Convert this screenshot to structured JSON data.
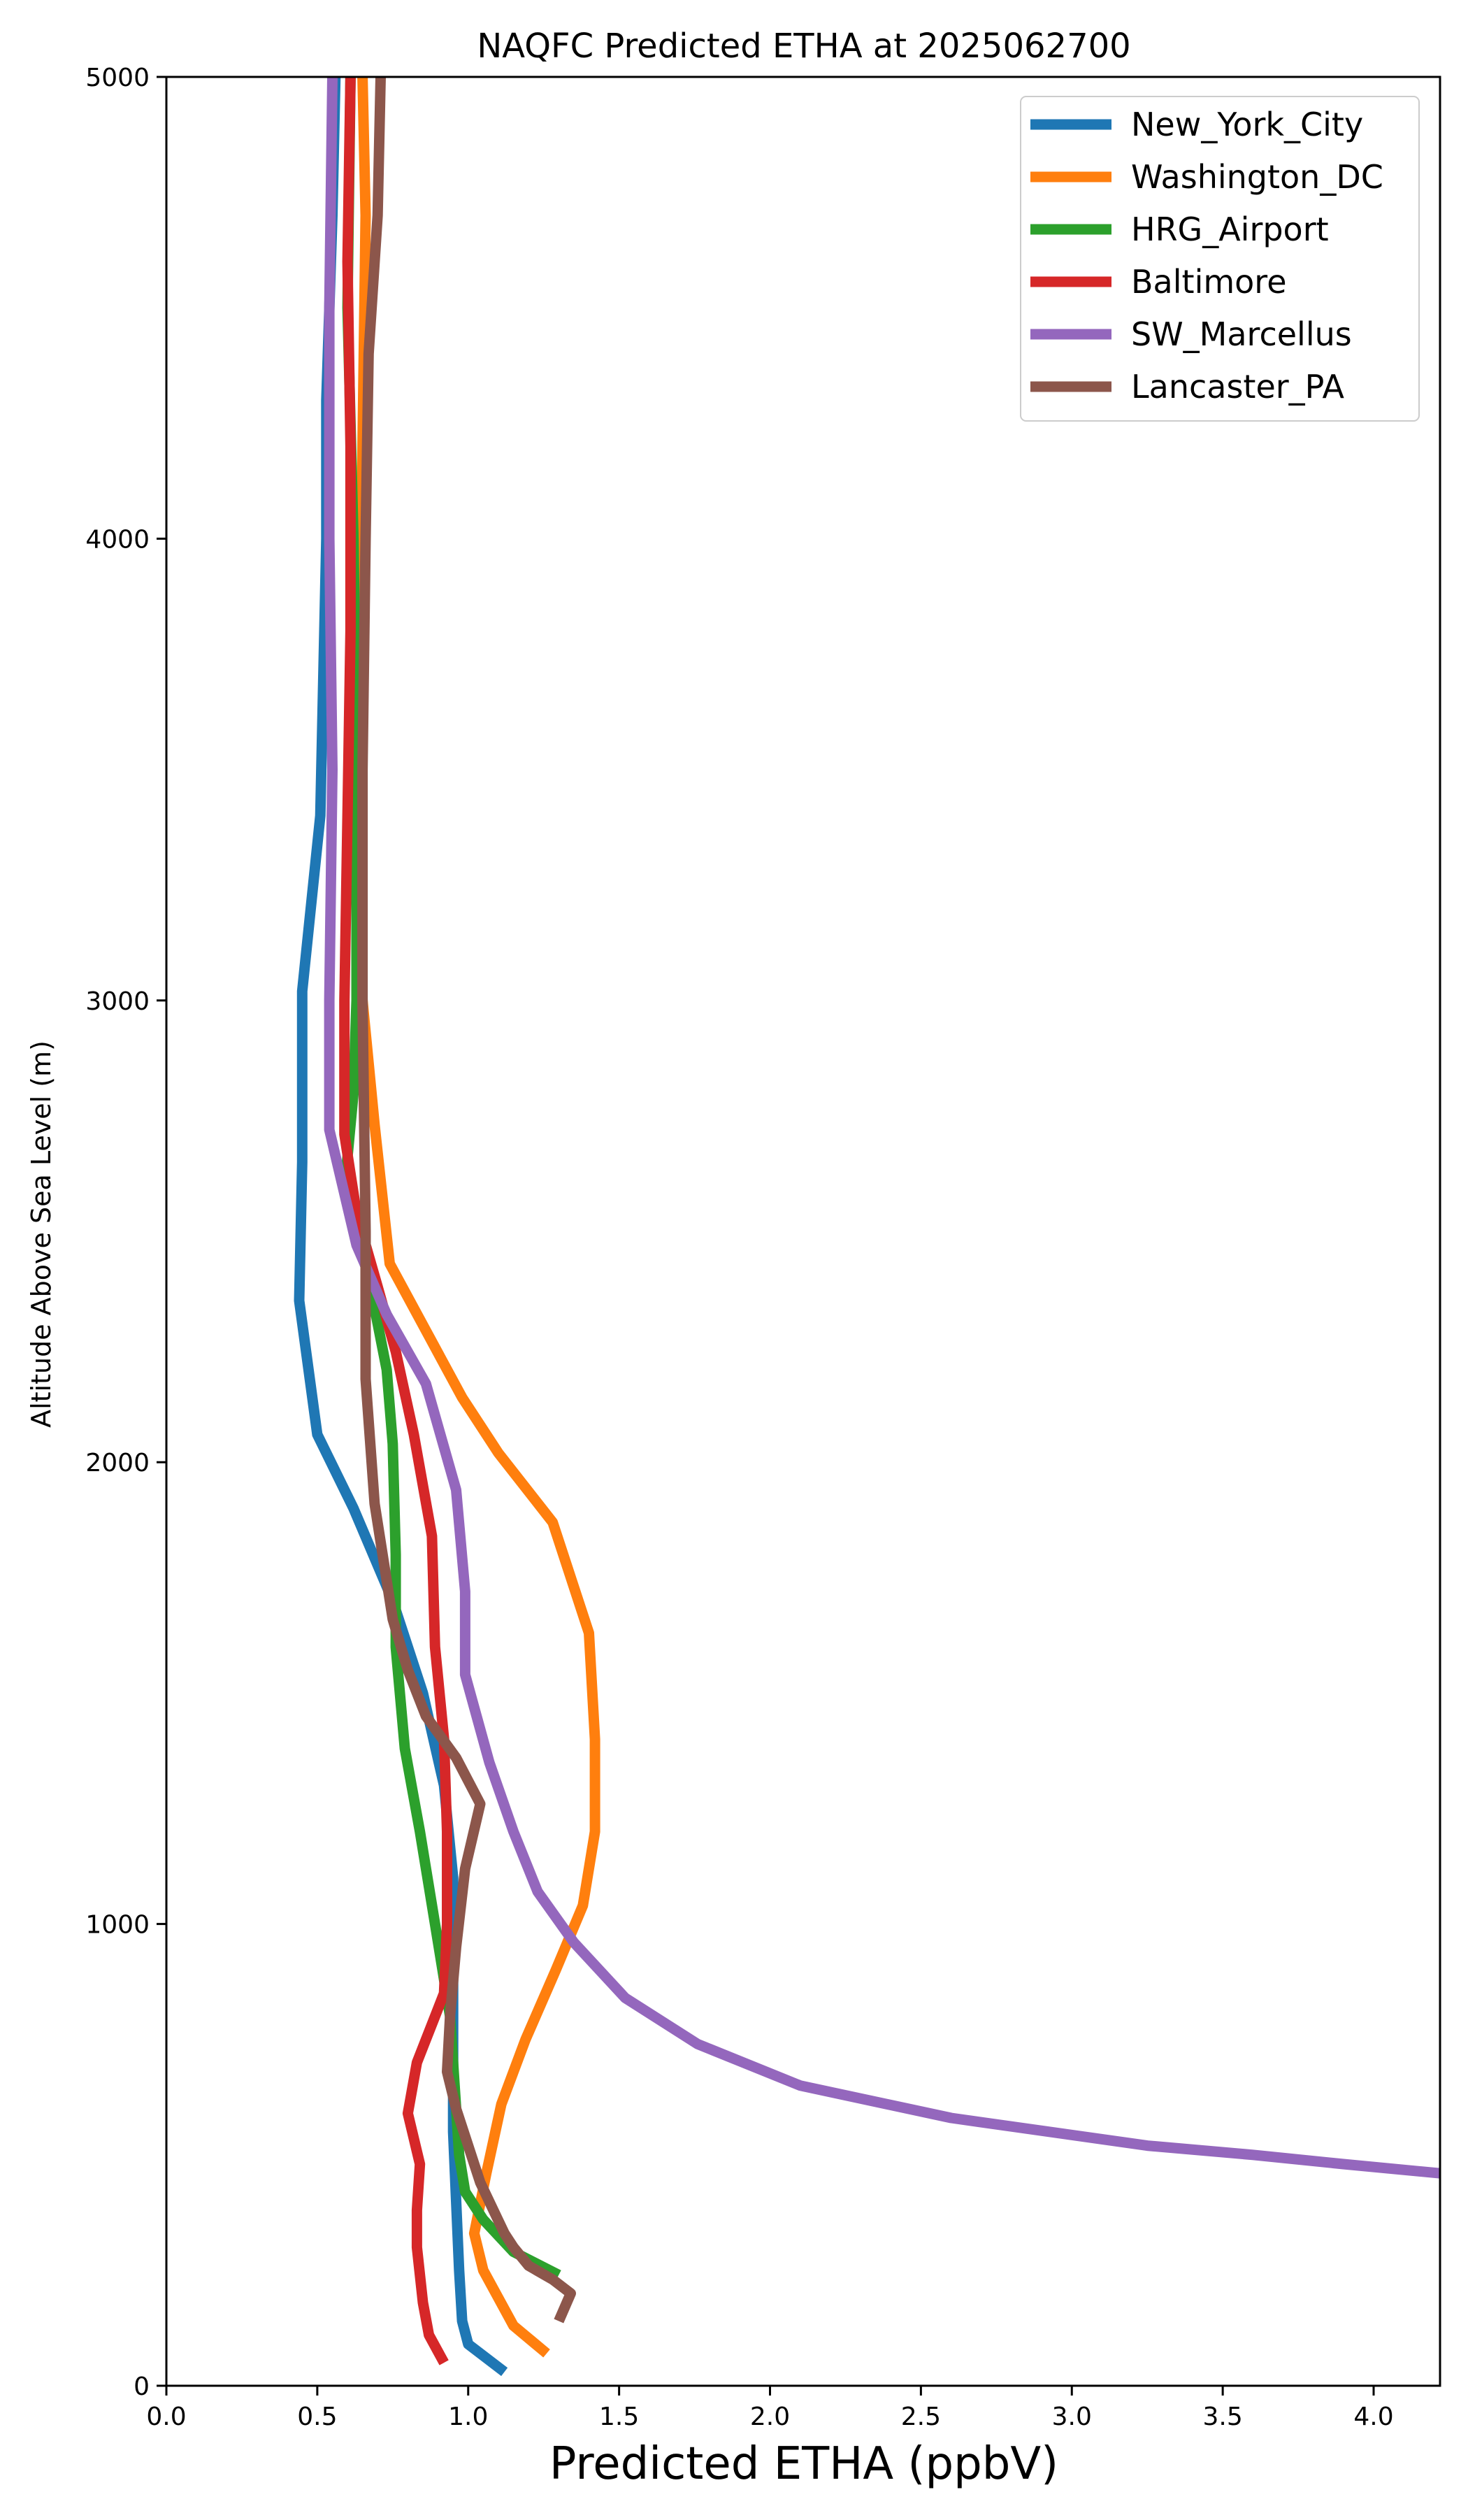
{
  "chart_data": {
    "type": "line",
    "title": "NAQFC Predicted ETHA at 2025062700",
    "xlabel": "Predicted ETHA (ppbV)",
    "ylabel": "Altitude Above Sea Level (m)",
    "xlim": [
      0,
      4.22
    ],
    "ylim": [
      0,
      5000
    ],
    "xticks": [
      0.0,
      0.5,
      1.0,
      1.5,
      2.0,
      2.5,
      3.0,
      3.5,
      4.0
    ],
    "xtick_labels": [
      "0.0",
      "0.5",
      "1.0",
      "1.5",
      "2.0",
      "2.5",
      "3.0",
      "3.5",
      "4.0"
    ],
    "yticks": [
      0,
      1000,
      2000,
      3000,
      4000,
      5000
    ],
    "ytick_labels": [
      "0",
      "1000",
      "2000",
      "3000",
      "4000",
      "5000"
    ],
    "grid": false,
    "legend_position": "top-right",
    "series": [
      {
        "name": "New_York_City",
        "color": "#1f77b4",
        "points": [
          [
            1.12,
            30
          ],
          [
            1.0,
            90
          ],
          [
            0.98,
            140
          ],
          [
            0.97,
            250
          ],
          [
            0.96,
            400
          ],
          [
            0.95,
            550
          ],
          [
            0.95,
            800
          ],
          [
            0.95,
            1100
          ],
          [
            0.92,
            1300
          ],
          [
            0.85,
            1500
          ],
          [
            0.75,
            1700
          ],
          [
            0.62,
            1900
          ],
          [
            0.5,
            2060
          ],
          [
            0.44,
            2350
          ],
          [
            0.45,
            2650
          ],
          [
            0.45,
            3020
          ],
          [
            0.51,
            3400
          ],
          [
            0.53,
            4000
          ],
          [
            0.53,
            4300
          ],
          [
            0.55,
            4700
          ],
          [
            0.56,
            5000
          ]
        ]
      },
      {
        "name": "Washington_DC",
        "color": "#ff7f0e",
        "points": [
          [
            1.26,
            70
          ],
          [
            1.15,
            130
          ],
          [
            1.05,
            250
          ],
          [
            1.02,
            330
          ],
          [
            1.06,
            460
          ],
          [
            1.11,
            610
          ],
          [
            1.19,
            750
          ],
          [
            1.29,
            900
          ],
          [
            1.38,
            1040
          ],
          [
            1.42,
            1200
          ],
          [
            1.42,
            1400
          ],
          [
            1.4,
            1630
          ],
          [
            1.28,
            1870
          ],
          [
            1.1,
            2020
          ],
          [
            0.98,
            2140
          ],
          [
            0.74,
            2430
          ],
          [
            0.69,
            2730
          ],
          [
            0.65,
            3000
          ],
          [
            0.63,
            3300
          ],
          [
            0.64,
            3700
          ],
          [
            0.65,
            4200
          ],
          [
            0.66,
            4700
          ],
          [
            0.65,
            5000
          ]
        ]
      },
      {
        "name": "HRG_Airport",
        "color": "#2ca02c",
        "points": [
          [
            1.3,
            240
          ],
          [
            1.15,
            290
          ],
          [
            1.05,
            360
          ],
          [
            0.99,
            420
          ],
          [
            0.97,
            500
          ],
          [
            0.96,
            600
          ],
          [
            0.94,
            800
          ],
          [
            0.89,
            1000
          ],
          [
            0.84,
            1200
          ],
          [
            0.79,
            1380
          ],
          [
            0.76,
            1600
          ],
          [
            0.76,
            1800
          ],
          [
            0.75,
            2040
          ],
          [
            0.73,
            2200
          ],
          [
            0.67,
            2400
          ],
          [
            0.59,
            2590
          ],
          [
            0.62,
            2800
          ],
          [
            0.63,
            3000
          ],
          [
            0.63,
            3500
          ],
          [
            0.62,
            4000
          ],
          [
            0.6,
            4500
          ],
          [
            0.61,
            5000
          ]
        ]
      },
      {
        "name": "Baltimore",
        "color": "#d62728",
        "points": [
          [
            0.92,
            50
          ],
          [
            0.87,
            110
          ],
          [
            0.85,
            180
          ],
          [
            0.83,
            300
          ],
          [
            0.83,
            380
          ],
          [
            0.84,
            480
          ],
          [
            0.8,
            590
          ],
          [
            0.83,
            700
          ],
          [
            0.89,
            800
          ],
          [
            0.92,
            850
          ],
          [
            0.93,
            1000
          ],
          [
            0.93,
            1200
          ],
          [
            0.92,
            1400
          ],
          [
            0.89,
            1600
          ],
          [
            0.88,
            1840
          ],
          [
            0.82,
            2060
          ],
          [
            0.76,
            2240
          ],
          [
            0.7,
            2380
          ],
          [
            0.63,
            2540
          ],
          [
            0.59,
            2710
          ],
          [
            0.59,
            3000
          ],
          [
            0.6,
            3400
          ],
          [
            0.61,
            3800
          ],
          [
            0.61,
            4200
          ],
          [
            0.6,
            4600
          ],
          [
            0.61,
            5000
          ]
        ]
      },
      {
        "name": "SW_Marcellus",
        "color": "#9467bd",
        "points": [
          [
            4.22,
            460
          ],
          [
            3.9,
            480
          ],
          [
            3.6,
            500
          ],
          [
            3.25,
            520
          ],
          [
            2.6,
            580
          ],
          [
            2.1,
            650
          ],
          [
            1.76,
            740
          ],
          [
            1.52,
            840
          ],
          [
            1.35,
            960
          ],
          [
            1.23,
            1070
          ],
          [
            1.15,
            1200
          ],
          [
            1.07,
            1350
          ],
          [
            0.99,
            1540
          ],
          [
            0.99,
            1720
          ],
          [
            0.96,
            1940
          ],
          [
            0.86,
            2170
          ],
          [
            0.73,
            2320
          ],
          [
            0.63,
            2470
          ],
          [
            0.54,
            2720
          ],
          [
            0.54,
            3000
          ],
          [
            0.55,
            3500
          ],
          [
            0.54,
            4000
          ],
          [
            0.54,
            4500
          ],
          [
            0.55,
            5000
          ]
        ]
      },
      {
        "name": "Lancaster_PA",
        "color": "#8c564b",
        "points": [
          [
            1.3,
            140
          ],
          [
            1.34,
            200
          ],
          [
            1.28,
            230
          ],
          [
            1.2,
            260
          ],
          [
            1.15,
            300
          ],
          [
            1.12,
            330
          ],
          [
            1.04,
            440
          ],
          [
            0.96,
            600
          ],
          [
            0.93,
            680
          ],
          [
            0.94,
            800
          ],
          [
            0.96,
            950
          ],
          [
            0.99,
            1120
          ],
          [
            1.04,
            1260
          ],
          [
            0.96,
            1360
          ],
          [
            0.86,
            1450
          ],
          [
            0.8,
            1550
          ],
          [
            0.75,
            1660
          ],
          [
            0.69,
            1910
          ],
          [
            0.66,
            2180
          ],
          [
            0.66,
            2500
          ],
          [
            0.65,
            3000
          ],
          [
            0.65,
            3500
          ],
          [
            0.66,
            4000
          ],
          [
            0.67,
            4400
          ],
          [
            0.7,
            4700
          ],
          [
            0.71,
            5000
          ]
        ]
      }
    ]
  }
}
